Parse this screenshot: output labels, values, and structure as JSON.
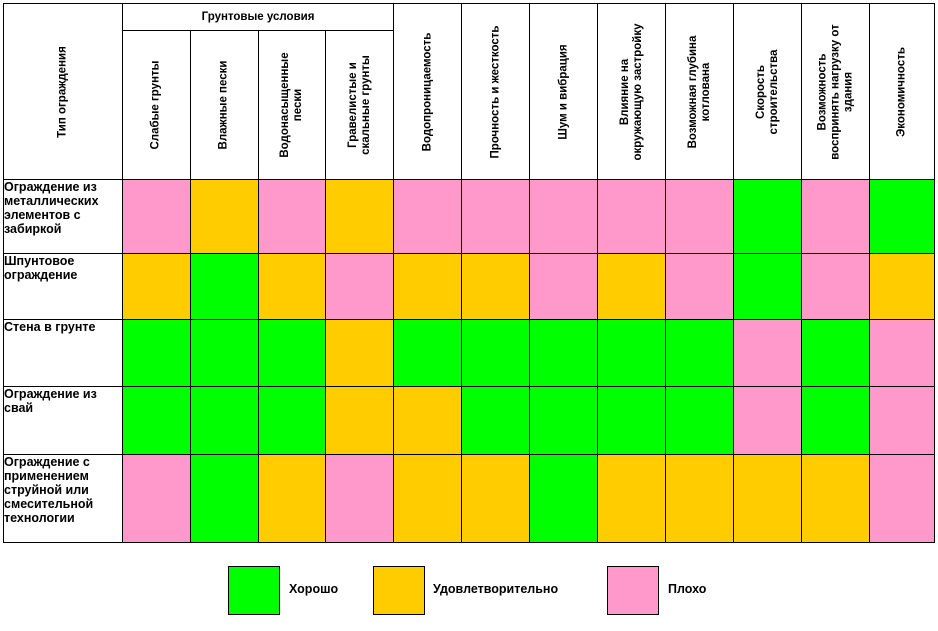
{
  "header": {
    "row_label_header": "Тип ограждения",
    "group_label": "Грунтовые условия",
    "soil_columns": [
      "Слабые грунты",
      "Влажные пески",
      "Водонасыщенные\nпески",
      "Гравелистые и\nскальные грунты"
    ],
    "other_columns": [
      "Водопроницаемость",
      "Прочность и жесткость",
      "Шум и вибрация",
      "Влияние на\nокружающую застройку",
      "Возможная глубина\nкотлована",
      "Скорость\nстроительства",
      "Возможность\nвоспринять нагрузку от\nздания",
      "Экономичность"
    ]
  },
  "colors": {
    "good": "#00ff00",
    "ok": "#ffcc00",
    "bad": "#ff99cc"
  },
  "rows": [
    {
      "label": "Ограждение из металлических элементов с забиркой",
      "ratings": [
        "bad",
        "ok",
        "bad",
        "ok",
        "bad",
        "bad",
        "bad",
        "bad",
        "bad",
        "good",
        "bad",
        "good"
      ]
    },
    {
      "label": "Шпунтовое ограждение",
      "ratings": [
        "ok",
        "good",
        "ok",
        "bad",
        "ok",
        "ok",
        "bad",
        "ok",
        "bad",
        "good",
        "bad",
        "ok"
      ]
    },
    {
      "label": "Стена в грунте",
      "ratings": [
        "good",
        "good",
        "good",
        "ok",
        "good",
        "good",
        "good",
        "good",
        "good",
        "bad",
        "good",
        "bad"
      ]
    },
    {
      "label": "Ограждение из свай",
      "ratings": [
        "good",
        "good",
        "good",
        "ok",
        "ok",
        "good",
        "good",
        "good",
        "good",
        "bad",
        "good",
        "bad"
      ]
    },
    {
      "label": "Ограждение с применением струйной или смесительной технологии",
      "ratings": [
        "bad",
        "good",
        "ok",
        "bad",
        "ok",
        "ok",
        "good",
        "ok",
        "ok",
        "ok",
        "ok",
        "bad"
      ]
    }
  ],
  "legend": [
    {
      "key": "good",
      "label": "Хорошо"
    },
    {
      "key": "ok",
      "label": "Удовлетворительно"
    },
    {
      "key": "bad",
      "label": "Плохо"
    }
  ]
}
